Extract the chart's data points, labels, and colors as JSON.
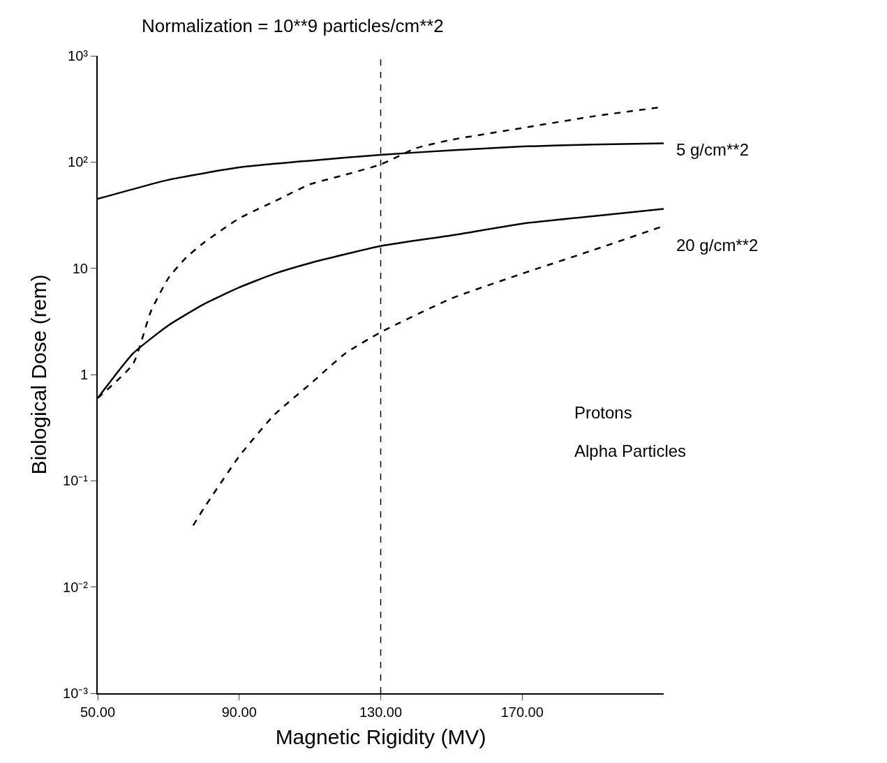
{
  "chart_data": {
    "type": "line",
    "title": "Normalization = 10**9 particles/cm**2",
    "xlabel": "Magnetic Rigidity (MV)",
    "ylabel": "Biological Dose (rem)",
    "xlim": [
      50,
      210
    ],
    "xticks": [
      {
        "value": 50,
        "label": "50.00"
      },
      {
        "value": 90,
        "label": "90.00"
      },
      {
        "value": 130,
        "label": "130.00"
      },
      {
        "value": 170,
        "label": "170.00"
      }
    ],
    "ylim": [
      0.001,
      1000
    ],
    "yticks": [
      {
        "value": 0.001,
        "label": "10⁻³"
      },
      {
        "value": 0.01,
        "label": "10⁻²"
      },
      {
        "value": 0.1,
        "label": "10⁻¹"
      },
      1,
      10,
      {
        "value": 100,
        "label": "10²"
      },
      {
        "value": 1000,
        "label": "10³"
      }
    ],
    "log": "y",
    "marker": "none",
    "series": [
      {
        "color": "#000000",
        "line_style": "solid",
        "x": [
          50,
          70,
          90,
          110,
          130,
          150,
          170,
          190,
          210
        ],
        "values": [
          45,
          68,
          89,
          103,
          117,
          129,
          140,
          146,
          150
        ]
      },
      {
        "color": "#000000",
        "line_style": "dashed",
        "x": [
          50,
          60,
          65,
          70,
          75,
          80,
          90,
          100,
          110,
          120,
          130,
          140,
          150,
          170,
          190,
          210
        ],
        "values": [
          0.6,
          1.26,
          3.9,
          8.1,
          12.6,
          17.4,
          29.5,
          42.7,
          61.7,
          75.9,
          95,
          135,
          162,
          209,
          269,
          331
        ]
      },
      {
        "color": "#000000",
        "line_style": "solid",
        "x": [
          50,
          60,
          70,
          80,
          90,
          100,
          110,
          130,
          150,
          170,
          190,
          210
        ],
        "values": [
          0.6,
          1.58,
          2.9,
          4.6,
          6.6,
          8.9,
          11.2,
          16.2,
          20.4,
          26.3,
          30.9,
          36.3
        ]
      },
      {
        "color": "#000000",
        "line_style": "dashed",
        "x": [
          77,
          80,
          90,
          100,
          110,
          120,
          130,
          150,
          170,
          190,
          210
        ],
        "values": [
          0.038,
          0.055,
          0.17,
          0.42,
          0.81,
          1.58,
          2.5,
          5.2,
          8.9,
          14.8,
          25
        ]
      }
    ],
    "ref_lines": [
      {
        "axis": "x",
        "value": 130,
        "color": "#000000",
        "line_style": "dashed"
      }
    ],
    "annotations": [
      "5 g/cm**2",
      "20 g/cm**2",
      "Protons",
      "Alpha Particles"
    ]
  }
}
